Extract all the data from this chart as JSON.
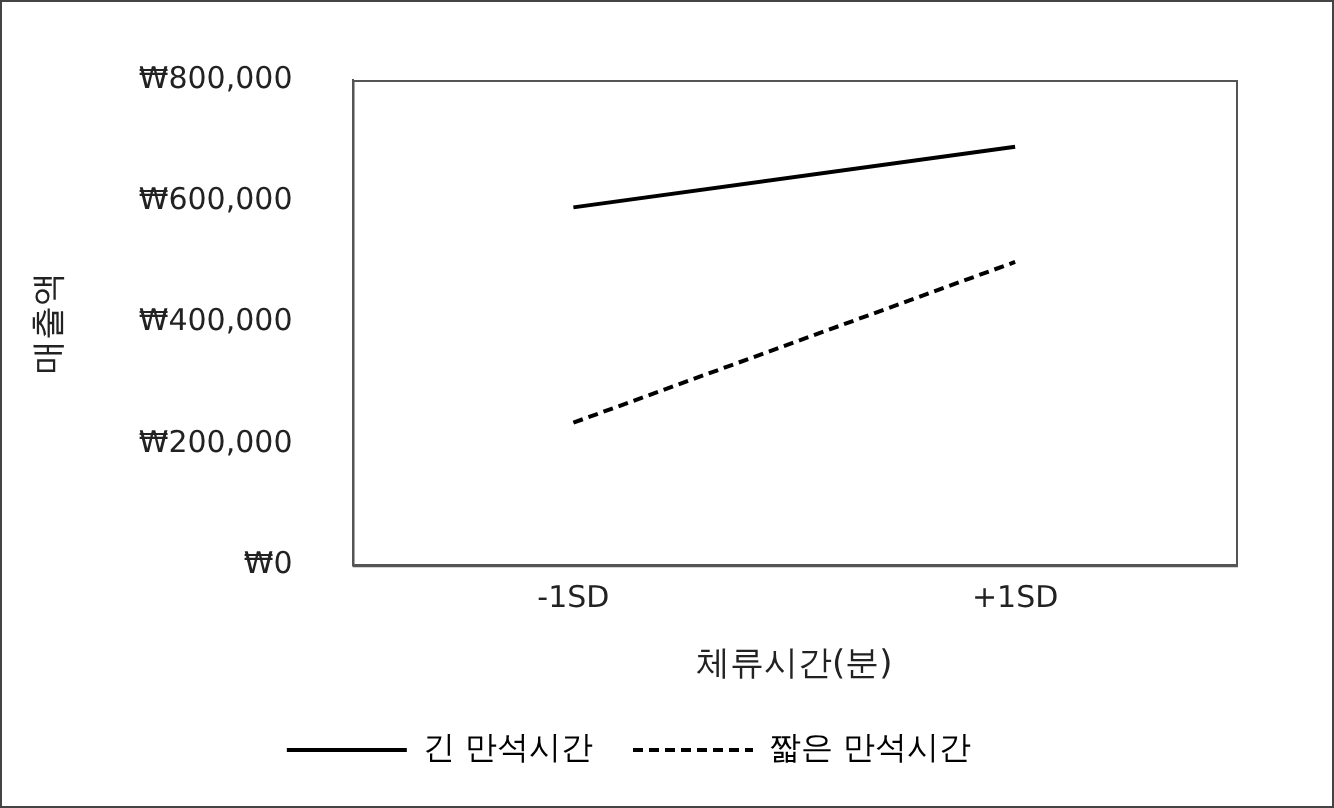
{
  "chart_data": {
    "type": "line",
    "xlabel": "체류시간(분)",
    "ylabel": "매출액",
    "categories": [
      "-1SD",
      "+1SD"
    ],
    "series": [
      {
        "name": "긴 만석시간",
        "color": "#000000",
        "values": [
          590000,
          690000
        ],
        "line_style": "solid"
      },
      {
        "name": "짧은 만석시간",
        "color": "#000000",
        "values": [
          235000,
          500000
        ],
        "line_style": "dashed"
      }
    ],
    "ylim": [
      0,
      800000
    ],
    "yticks": [
      {
        "value": 0,
        "label": "₩0"
      },
      {
        "value": 200000,
        "label": "₩200,000"
      },
      {
        "value": 400000,
        "label": "₩400,000"
      },
      {
        "value": 600000,
        "label": "₩600,000"
      },
      {
        "value": 800000,
        "label": "₩800,000"
      }
    ],
    "grid": false,
    "legend": "bottom",
    "marker": "none"
  }
}
